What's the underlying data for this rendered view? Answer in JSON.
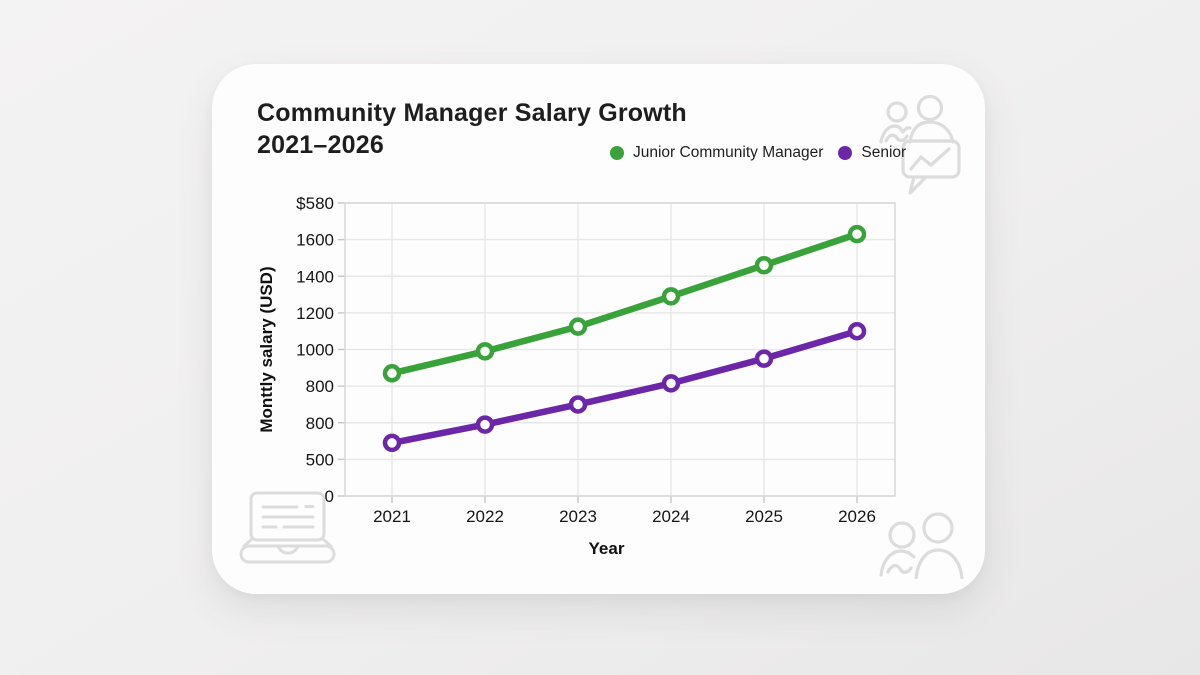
{
  "card": {
    "title_line1": "Community Manager Salary Growth",
    "title_line2": "2021–2026"
  },
  "legend": [
    {
      "label": "Junior Community Manager",
      "color": "#3aa23a"
    },
    {
      "label": "Senior",
      "color": "#6c27a9"
    }
  ],
  "chart_data": {
    "type": "line",
    "title": "Community Manager Salary Growth 2021–2026",
    "xlabel": "Year",
    "ylabel": "Monttly salary (USD)",
    "categories": [
      "2021",
      "2022",
      "2023",
      "2024",
      "2025",
      "2026"
    ],
    "series": [
      {
        "name": "Junior Community Manager",
        "color": "#3aa23a",
        "values": [
          870,
          990,
          1125,
          1290,
          1460,
          1630
        ]
      },
      {
        "name": "Senior",
        "color": "#6c27a9",
        "values": [
          490,
          590,
          700,
          815,
          950,
          1100
        ]
      }
    ],
    "y_axis": {
      "tick_labels_top_to_bottom": [
        "$580",
        "1600",
        "1400",
        "1200",
        "1000",
        "800",
        "800",
        "500",
        "0"
      ],
      "anchor_index": 4,
      "anchor_value": 1000,
      "value_per_gridline": 200
    },
    "grid": true,
    "legend_position": "top-right",
    "marker": "open-circle",
    "line_colors": {
      "junior": "#3aa23a",
      "senior": "#6c27a9"
    }
  },
  "icons": {
    "top_right": "people-chat-trend-icon",
    "bottom_left": "laptop-notes-icon",
    "bottom_right": "people-icon",
    "color": "#dcdcdc"
  }
}
